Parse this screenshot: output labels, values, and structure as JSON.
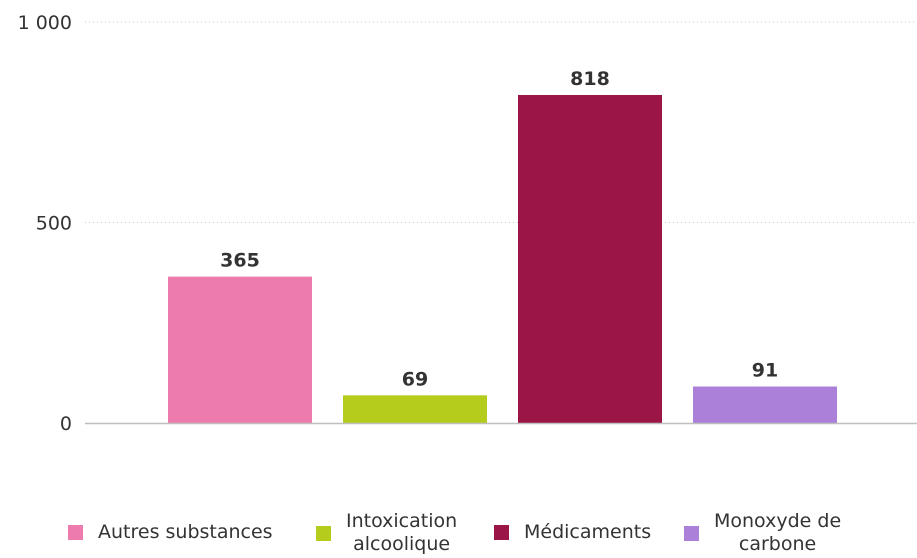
{
  "chart_data": {
    "type": "bar",
    "categories": [
      "Autres substances",
      "Intoxication alcoolique",
      "Médicaments",
      "Monoxyde de carbone"
    ],
    "values": [
      365,
      69,
      818,
      91
    ],
    "colors": [
      "#ee7bae",
      "#b5cc1c",
      "#9b1546",
      "#ab80d8"
    ],
    "y_ticks": [
      "0",
      "500",
      "1 000"
    ],
    "y_tick_values": [
      0,
      500,
      1000
    ],
    "ylim": [
      0,
      1000
    ],
    "grid": "horizontal dotted",
    "legend_position": "bottom",
    "title": "",
    "xlabel": "",
    "ylabel": ""
  },
  "legend": {
    "items": [
      {
        "label_lines": [
          "Autres substances"
        ]
      },
      {
        "label_lines": [
          "Intoxication",
          "alcoolique"
        ]
      },
      {
        "label_lines": [
          "Médicaments"
        ]
      },
      {
        "label_lines": [
          "Monoxyde de",
          "carbone"
        ]
      }
    ]
  }
}
